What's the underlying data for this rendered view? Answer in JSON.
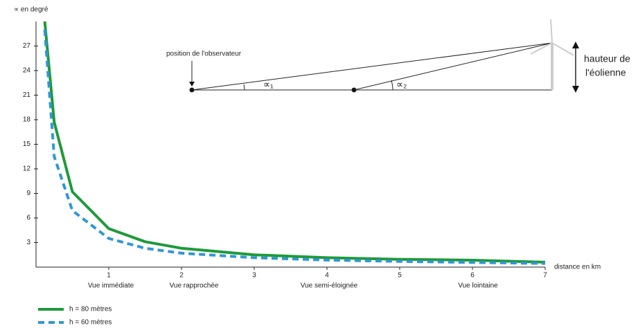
{
  "chart_data": {
    "type": "line",
    "y_label": "∝ en degré",
    "x_label": "distance en km",
    "x": [
      0.12,
      0.25,
      0.5,
      1,
      1.5,
      2,
      3,
      4,
      5,
      6,
      7
    ],
    "series": [
      {
        "name": "h = 80 mètres",
        "color": "#1e9a3a",
        "dash": false,
        "values": [
          30,
          17.7,
          9.2,
          4.7,
          3.1,
          2.3,
          1.5,
          1.15,
          0.95,
          0.85,
          0.6
        ]
      },
      {
        "name": "h = 60 mètres",
        "color": "#2f97d6",
        "dash": true,
        "values": [
          29,
          13.5,
          6.9,
          3.5,
          2.3,
          1.7,
          1.15,
          0.86,
          0.7,
          0.57,
          0.45
        ]
      }
    ],
    "xlim": [
      0,
      7
    ],
    "ylim": [
      0,
      30
    ],
    "xticks": [
      1,
      2,
      3,
      4,
      5,
      6,
      7
    ],
    "yticks": [
      3,
      6,
      9,
      12,
      15,
      18,
      21,
      24,
      27
    ],
    "zones": [
      "Vue immédiate",
      "Vue rapprochée",
      "Vue semi-éloignée",
      "Vue lointaine"
    ],
    "legend": "bottom-left",
    "annotations": {
      "observer": "position de l'observateur",
      "alpha1": "∝₁",
      "alpha2": "∝₂",
      "height_line1": "hauteur de",
      "height_line2": "l'éolienne"
    }
  }
}
